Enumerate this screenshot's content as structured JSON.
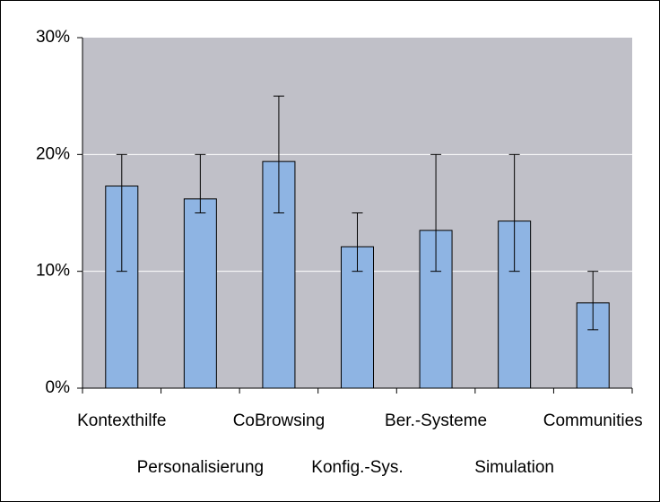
{
  "chart_data": {
    "type": "bar",
    "categories": [
      "Kontexthilfe",
      "Personalisierung",
      "CoBrowsing",
      "Konfig.-Sys.",
      "Ber.-Systeme",
      "Simulation",
      "Communities"
    ],
    "values": [
      17.3,
      16.2,
      19.4,
      12.1,
      13.5,
      14.3,
      7.3
    ],
    "error_low": [
      10,
      15,
      15,
      10,
      10,
      10,
      5
    ],
    "error_high": [
      20,
      20,
      25,
      15,
      20,
      20,
      10
    ],
    "color": "#8eb4e3",
    "ylim": [
      0,
      30
    ],
    "yticks": [
      {
        "value": 0,
        "label": "0%"
      },
      {
        "value": 10,
        "label": "10%"
      },
      {
        "value": 20,
        "label": "20%"
      },
      {
        "value": 30,
        "label": "30%"
      }
    ],
    "grid": true
  }
}
